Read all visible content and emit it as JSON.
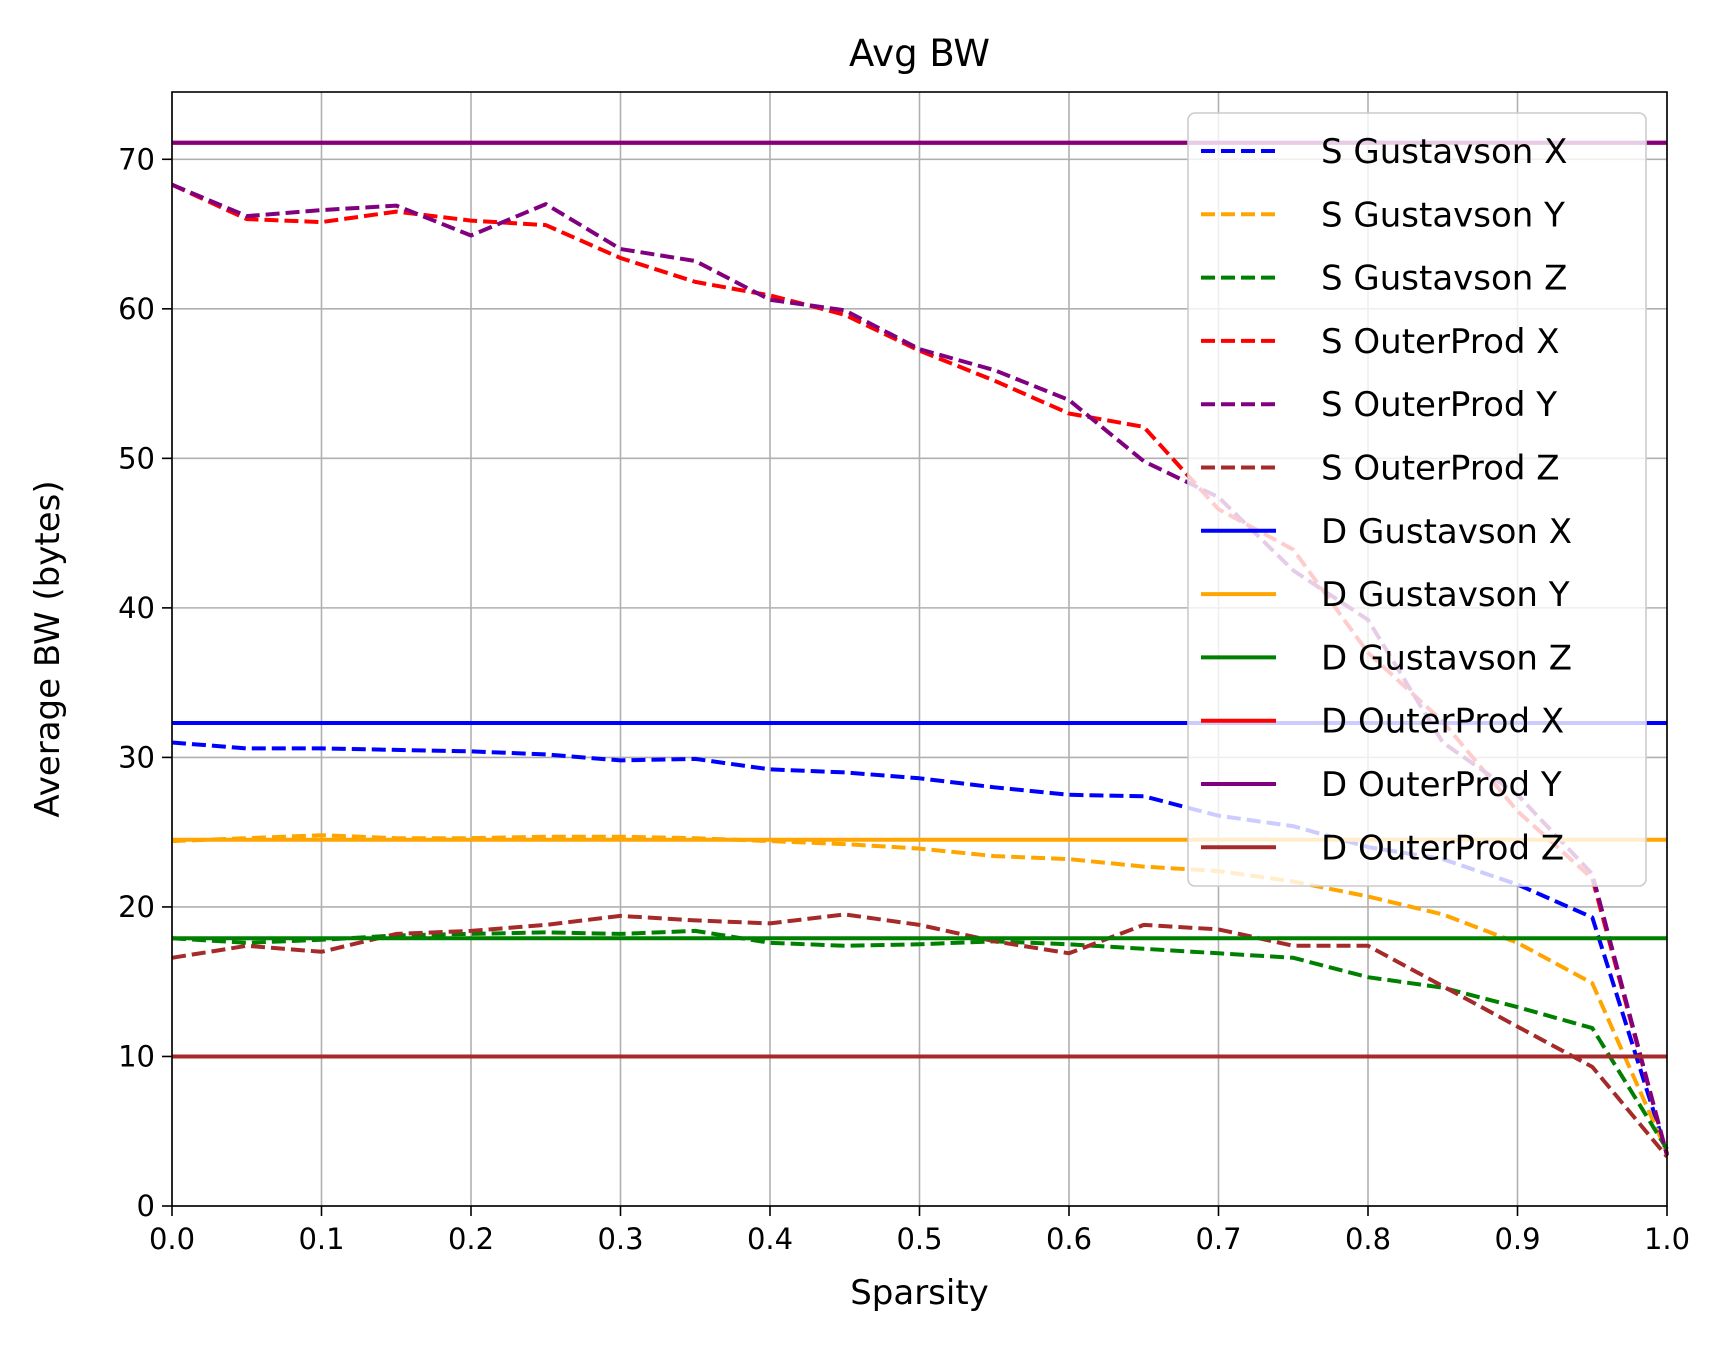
{
  "chart_data": {
    "type": "line",
    "title": "Avg BW",
    "xlabel": "Sparsity",
    "ylabel": "Average BW (bytes)",
    "xlim": [
      0,
      1
    ],
    "ylim": [
      0,
      74.5
    ],
    "xticks": [
      0.0,
      0.1,
      0.2,
      0.3,
      0.4,
      0.5,
      0.6,
      0.7,
      0.8,
      0.9,
      1.0
    ],
    "xtick_labels": [
      "0.0",
      "0.1",
      "0.2",
      "0.3",
      "0.4",
      "0.5",
      "0.6",
      "0.7",
      "0.8",
      "0.9",
      "1.0"
    ],
    "yticks": [
      0,
      10,
      20,
      30,
      40,
      50,
      60,
      70
    ],
    "ytick_labels": [
      "0",
      "10",
      "20",
      "30",
      "40",
      "50",
      "60",
      "70"
    ],
    "grid": true,
    "legend_position": "top-right",
    "x": [
      0.0,
      0.05,
      0.1,
      0.15,
      0.2,
      0.25,
      0.3,
      0.35,
      0.4,
      0.45,
      0.5,
      0.55,
      0.6,
      0.65,
      0.7,
      0.75,
      0.8,
      0.85,
      0.9,
      0.95,
      1.0
    ],
    "series": [
      {
        "name": "S Gustavson X",
        "style": "dashed",
        "color": "#0000ff",
        "values": [
          31.0,
          30.6,
          30.6,
          30.5,
          30.4,
          30.2,
          29.8,
          29.9,
          29.2,
          29.0,
          28.6,
          28.0,
          27.5,
          27.4,
          26.1,
          25.4,
          24.0,
          23.2,
          21.5,
          19.3,
          3.5
        ]
      },
      {
        "name": "S Gustavson Y",
        "style": "dashed",
        "color": "#ffa500",
        "values": [
          24.4,
          24.6,
          24.8,
          24.6,
          24.6,
          24.7,
          24.7,
          24.6,
          24.4,
          24.2,
          23.9,
          23.4,
          23.2,
          22.7,
          22.4,
          21.7,
          20.7,
          19.5,
          17.6,
          14.9,
          3.6
        ]
      },
      {
        "name": "S Gustavson Z",
        "style": "dashed",
        "color": "#008000",
        "values": [
          17.9,
          17.6,
          17.8,
          18.1,
          18.2,
          18.3,
          18.2,
          18.4,
          17.6,
          17.4,
          17.5,
          17.7,
          17.5,
          17.2,
          16.9,
          16.6,
          15.3,
          14.6,
          13.3,
          11.9,
          3.8
        ]
      },
      {
        "name": "S OuterProd X",
        "style": "dashed",
        "color": "#ff0000",
        "values": [
          68.3,
          66.0,
          65.8,
          66.5,
          65.9,
          65.6,
          63.4,
          61.8,
          60.9,
          59.6,
          57.2,
          55.2,
          53.0,
          52.1,
          46.6,
          43.9,
          37.0,
          32.4,
          26.4,
          21.9,
          3.4
        ]
      },
      {
        "name": "S OuterProd Y",
        "style": "dashed",
        "color": "#800080",
        "values": [
          68.3,
          66.2,
          66.6,
          66.9,
          64.9,
          67.0,
          64.0,
          63.2,
          60.6,
          59.9,
          57.3,
          55.9,
          53.9,
          49.8,
          47.4,
          42.5,
          39.2,
          31.0,
          27.5,
          22.2,
          3.4
        ]
      },
      {
        "name": "S OuterProd Z",
        "style": "dashed",
        "color": "#a52a2a",
        "values": [
          16.6,
          17.4,
          17.0,
          18.2,
          18.4,
          18.8,
          19.4,
          19.1,
          18.9,
          19.5,
          18.8,
          17.7,
          16.9,
          18.8,
          18.5,
          17.4,
          17.4,
          14.7,
          12.0,
          9.3,
          3.3
        ]
      },
      {
        "name": "D Gustavson X",
        "style": "solid",
        "color": "#0000ff",
        "constant": 32.3
      },
      {
        "name": "D Gustavson Y",
        "style": "solid",
        "color": "#ffa500",
        "constant": 24.5
      },
      {
        "name": "D Gustavson Z",
        "style": "solid",
        "color": "#008000",
        "constant": 17.9
      },
      {
        "name": "D OuterProd X",
        "style": "solid",
        "color": "#ff0000",
        "constant": 71.1
      },
      {
        "name": "D OuterProd Y",
        "style": "solid",
        "color": "#800080",
        "constant": 71.1
      },
      {
        "name": "D OuterProd Z",
        "style": "solid",
        "color": "#a52a2a",
        "constant": 10.0
      }
    ]
  }
}
